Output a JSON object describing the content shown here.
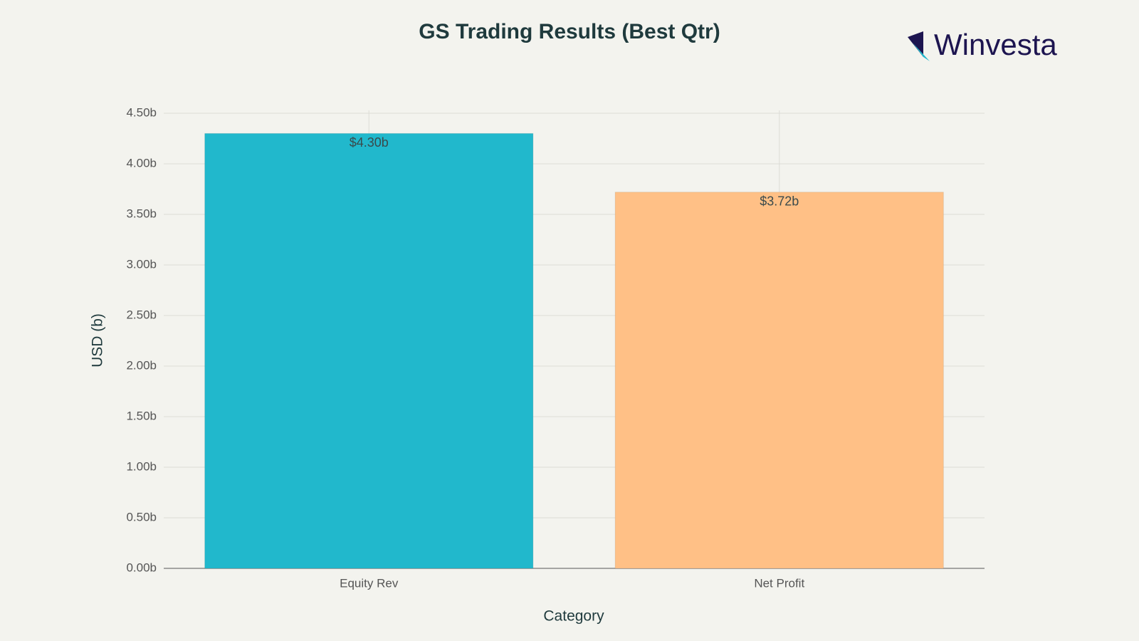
{
  "brand": "Winvesta",
  "chart_data": {
    "type": "bar",
    "title": "GS Trading Results (Best Qtr)",
    "x_label": "Category",
    "y_label": "USD (b)",
    "categories": [
      "Equity Rev",
      "Net Profit"
    ],
    "values": [
      4.3,
      3.72
    ],
    "value_labels": [
      "$4.30b",
      "$3.72b"
    ],
    "colors": [
      "#21b8cc",
      "#ffc086"
    ],
    "ylim": [
      0,
      4.5
    ],
    "yticks": [
      {
        "value": 0,
        "label": "0.00b"
      },
      {
        "value": 0.5,
        "label": "0.50b"
      },
      {
        "value": 1,
        "label": "1.00b"
      },
      {
        "value": 1.5,
        "label": "1.50b"
      },
      {
        "value": 2,
        "label": "2.00b"
      },
      {
        "value": 2.5,
        "label": "2.50b"
      },
      {
        "value": 3,
        "label": "3.00b"
      },
      {
        "value": 3.5,
        "label": "3.50b"
      },
      {
        "value": 4,
        "label": "4.00b"
      },
      {
        "value": 4.5,
        "label": "4.50b"
      }
    ],
    "grid": true
  }
}
